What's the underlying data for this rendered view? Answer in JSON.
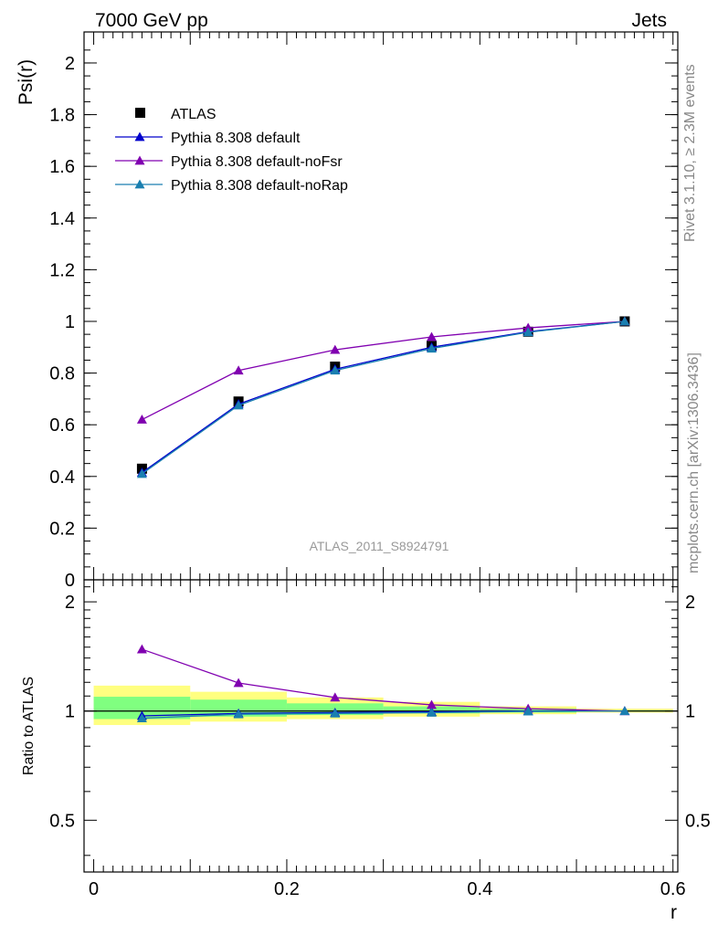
{
  "header": {
    "left": "7000 GeV pp",
    "right": "Jets"
  },
  "side_labels": {
    "rivet": "Rivet 3.1.10, ≥ 2.3M events",
    "mcplots": "mcplots.cern.ch [arXiv:1306.3436]"
  },
  "watermark": "ATLAS_2011_S8924791",
  "chart_data": [
    {
      "type": "line",
      "ylabel": "Psi(r)",
      "ylim": [
        0,
        2.12
      ],
      "xlim": [
        -0.01,
        0.605
      ],
      "yticks": [
        0,
        0.2,
        0.4,
        0.6,
        0.8,
        1,
        1.2,
        1.4,
        1.6,
        1.8,
        2
      ],
      "ytick_labels": [
        "0",
        "0.2",
        "0.4",
        "0.6",
        "0.8",
        "1",
        "1.2",
        "1.4",
        "1.6",
        "1.8",
        "2"
      ],
      "x": [
        0.05,
        0.15,
        0.25,
        0.35,
        0.45,
        0.55
      ],
      "legend_position": "top-left",
      "legend": [
        {
          "label": "ATLAS",
          "color": "#000000",
          "marker": "square"
        },
        {
          "label": "Pythia 8.308 default",
          "color": "#0000cc",
          "marker": "triangle"
        },
        {
          "label": "Pythia 8.308 default-noFsr",
          "color": "#8000b0",
          "marker": "triangle"
        },
        {
          "label": "Pythia 8.308 default-noRap",
          "color": "#1a7fb0",
          "marker": "triangle"
        }
      ],
      "series": [
        {
          "name": "ATLAS",
          "color": "#000000",
          "marker": "square",
          "values": [
            0.43,
            0.69,
            0.825,
            0.905,
            0.96,
            1.0
          ]
        },
        {
          "name": "Pythia 8.308 default",
          "color": "#0000cc",
          "marker": "triangle",
          "values": [
            0.415,
            0.68,
            0.815,
            0.9,
            0.96,
            1.0
          ]
        },
        {
          "name": "Pythia 8.308 default-noFsr",
          "color": "#8000b0",
          "marker": "triangle",
          "values": [
            0.62,
            0.81,
            0.89,
            0.94,
            0.975,
            1.0
          ]
        },
        {
          "name": "Pythia 8.308 default-noRap",
          "color": "#1a7fb0",
          "marker": "triangle",
          "values": [
            0.41,
            0.675,
            0.81,
            0.895,
            0.958,
            1.0
          ]
        }
      ]
    },
    {
      "type": "line",
      "ylabel": "Ratio to ATLAS",
      "xlabel": "r",
      "ylim": [
        0.36,
        2.3
      ],
      "yscale": "log",
      "xlim": [
        -0.01,
        0.605
      ],
      "yticks": [
        0.5,
        1,
        2
      ],
      "ytick_labels": [
        "0.5",
        "1",
        "2"
      ],
      "xticks": [
        0,
        0.2,
        0.4,
        0.6
      ],
      "xtick_labels": [
        "0",
        "0.2",
        "0.4",
        "0.6"
      ],
      "x": [
        0.05,
        0.15,
        0.25,
        0.35,
        0.45,
        0.55
      ],
      "bands": {
        "bin_edges": [
          0,
          0.1,
          0.2,
          0.3,
          0.4,
          0.5,
          0.6
        ],
        "yellow_color": "#ffff80",
        "green_color": "#80ff80",
        "yellow": [
          [
            0.915,
            1.175
          ],
          [
            0.935,
            1.13
          ],
          [
            0.95,
            1.09
          ],
          [
            0.965,
            1.06
          ],
          [
            0.98,
            1.03
          ],
          [
            0.99,
            1.015
          ]
        ],
        "green": [
          [
            0.95,
            1.095
          ],
          [
            0.965,
            1.075
          ],
          [
            0.975,
            1.05
          ],
          [
            0.985,
            1.03
          ],
          [
            0.99,
            1.015
          ],
          [
            0.996,
            1.006
          ]
        ]
      },
      "series": [
        {
          "name": "Pythia 8.308 default",
          "color": "#0000cc",
          "marker": "triangle",
          "values": [
            0.97,
            0.985,
            0.99,
            0.995,
            1.0,
            1.0
          ]
        },
        {
          "name": "Pythia 8.308 default-noFsr",
          "color": "#8000b0",
          "marker": "triangle",
          "values": [
            1.48,
            1.195,
            1.09,
            1.04,
            1.015,
            1.0
          ]
        },
        {
          "name": "Pythia 8.308 default-noRap",
          "color": "#1a7fb0",
          "marker": "triangle",
          "values": [
            0.955,
            0.98,
            0.985,
            0.99,
            0.998,
            1.0
          ]
        }
      ]
    }
  ]
}
